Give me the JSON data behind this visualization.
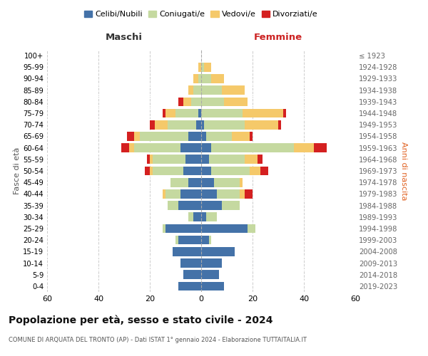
{
  "age_groups": [
    "0-4",
    "5-9",
    "10-14",
    "15-19",
    "20-24",
    "25-29",
    "30-34",
    "35-39",
    "40-44",
    "45-49",
    "50-54",
    "55-59",
    "60-64",
    "65-69",
    "70-74",
    "75-79",
    "80-84",
    "85-89",
    "90-94",
    "95-99",
    "100+"
  ],
  "birth_years": [
    "2019-2023",
    "2014-2018",
    "2009-2013",
    "2004-2008",
    "1999-2003",
    "1994-1998",
    "1989-1993",
    "1984-1988",
    "1979-1983",
    "1974-1978",
    "1969-1973",
    "1964-1968",
    "1959-1963",
    "1954-1958",
    "1949-1953",
    "1944-1948",
    "1939-1943",
    "1934-1938",
    "1929-1933",
    "1924-1928",
    "≤ 1923"
  ],
  "colors": {
    "celibi": "#4472a8",
    "coniugati": "#c5d9a0",
    "vedovi": "#f5c96a",
    "divorziati": "#d42020"
  },
  "males": {
    "celibi": [
      9,
      7,
      8,
      11,
      9,
      14,
      3,
      9,
      8,
      5,
      7,
      6,
      8,
      5,
      2,
      1,
      0,
      0,
      0,
      0,
      0
    ],
    "coniugati": [
      0,
      0,
      0,
      0,
      1,
      1,
      2,
      4,
      6,
      7,
      12,
      13,
      18,
      19,
      11,
      9,
      4,
      3,
      1,
      0,
      0
    ],
    "vedovi": [
      0,
      0,
      0,
      0,
      0,
      0,
      0,
      0,
      1,
      0,
      1,
      1,
      2,
      2,
      5,
      4,
      3,
      2,
      2,
      1,
      0
    ],
    "divorziati": [
      0,
      0,
      0,
      0,
      0,
      0,
      0,
      0,
      0,
      0,
      2,
      1,
      3,
      3,
      2,
      1,
      2,
      0,
      0,
      0,
      0
    ]
  },
  "females": {
    "nubili": [
      9,
      7,
      8,
      13,
      3,
      18,
      2,
      8,
      6,
      5,
      4,
      3,
      4,
      2,
      1,
      0,
      0,
      0,
      0,
      0,
      0
    ],
    "coniugate": [
      0,
      0,
      0,
      0,
      1,
      3,
      4,
      7,
      9,
      10,
      15,
      14,
      32,
      10,
      16,
      16,
      9,
      8,
      4,
      1,
      0
    ],
    "vedove": [
      0,
      0,
      0,
      0,
      0,
      0,
      0,
      0,
      2,
      1,
      4,
      5,
      8,
      7,
      13,
      16,
      9,
      9,
      5,
      3,
      0
    ],
    "divorziate": [
      0,
      0,
      0,
      0,
      0,
      0,
      0,
      0,
      3,
      0,
      3,
      2,
      5,
      1,
      1,
      1,
      0,
      0,
      0,
      0,
      0
    ]
  },
  "title": "Popolazione per età, sesso e stato civile - 2024",
  "subtitle": "COMUNE DI ARQUATA DEL TRONTO (AP) - Dati ISTAT 1° gennaio 2024 - Elaborazione TUTTAITALIA.IT",
  "xlabel_left": "Maschi",
  "xlabel_right": "Femmine",
  "ylabel": "Fasce di età",
  "ylabel_right": "Anni di nascita",
  "xlim": 60,
  "legend_labels": [
    "Celibi/Nubili",
    "Coniugati/e",
    "Vedovi/e",
    "Divorziati/e"
  ],
  "background_color": "#ffffff",
  "grid_color": "#cccccc"
}
